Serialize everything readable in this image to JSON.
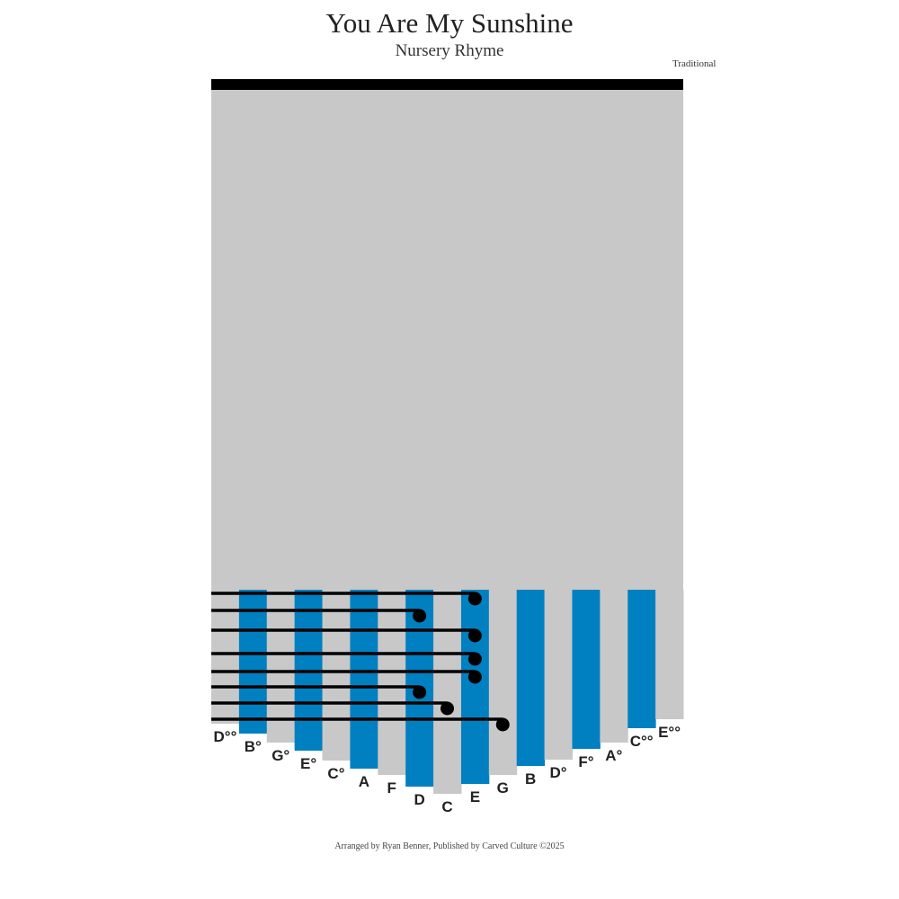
{
  "header": {
    "title": "You Are My Sunshine",
    "subtitle": "Nursery Rhyme",
    "composer": "Traditional"
  },
  "footer": {
    "credit": "Arranged by Ryan Benner, Published by Carved Culture ©2025"
  },
  "colors": {
    "blue_tine": "#0080c0",
    "gray_tine": "#c8c8c8",
    "bar": "#000000",
    "note": "#000000"
  },
  "kalimba": {
    "tines": [
      "D°°",
      "B°",
      "G°",
      "E°",
      "C°",
      "A",
      "F",
      "D",
      "C",
      "E",
      "G",
      "B",
      "D°",
      "F°",
      "A°",
      "C°°",
      "E°°"
    ],
    "blue_tine_indices": [
      1,
      3,
      5,
      7,
      9,
      11,
      13,
      15
    ],
    "notes": [
      "E",
      "D",
      "E",
      "E",
      "E",
      "D",
      "C",
      "G"
    ]
  }
}
